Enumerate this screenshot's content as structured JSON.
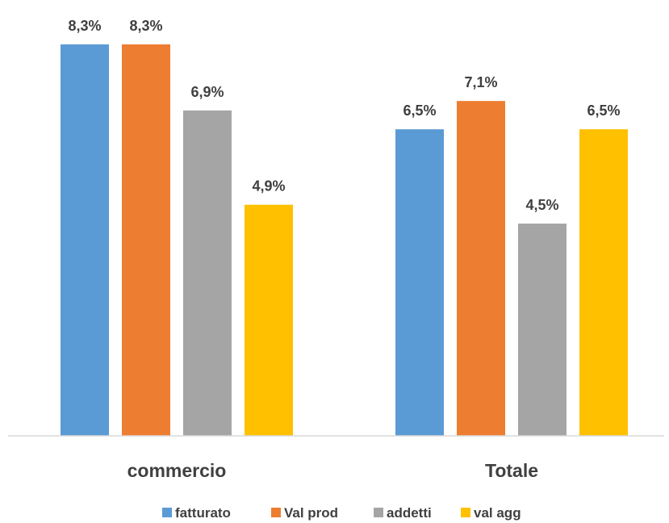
{
  "chart_data": {
    "type": "bar",
    "categories": [
      "commercio",
      "Totale"
    ],
    "series": [
      {
        "name": "fatturato",
        "values": [
          8.3,
          6.5
        ],
        "labels": [
          "8,3%",
          "6,5%"
        ],
        "color": "#5B9BD5"
      },
      {
        "name": "Val prod",
        "values": [
          8.3,
          7.1
        ],
        "labels": [
          "8,3%",
          "7,1%"
        ],
        "color": "#ED7D31"
      },
      {
        "name": "addetti",
        "values": [
          6.9,
          4.5
        ],
        "labels": [
          "6,9%",
          "4,5%"
        ],
        "color": "#A5A5A5"
      },
      {
        "name": "val agg",
        "values": [
          4.9,
          6.5
        ],
        "labels": [
          "4,9%",
          "6,5%"
        ],
        "color": "#FFC000"
      }
    ],
    "ylim": [
      0,
      8.3
    ],
    "grid": false,
    "legend_position": "bottom",
    "title": "",
    "xlabel": "",
    "ylabel": ""
  }
}
